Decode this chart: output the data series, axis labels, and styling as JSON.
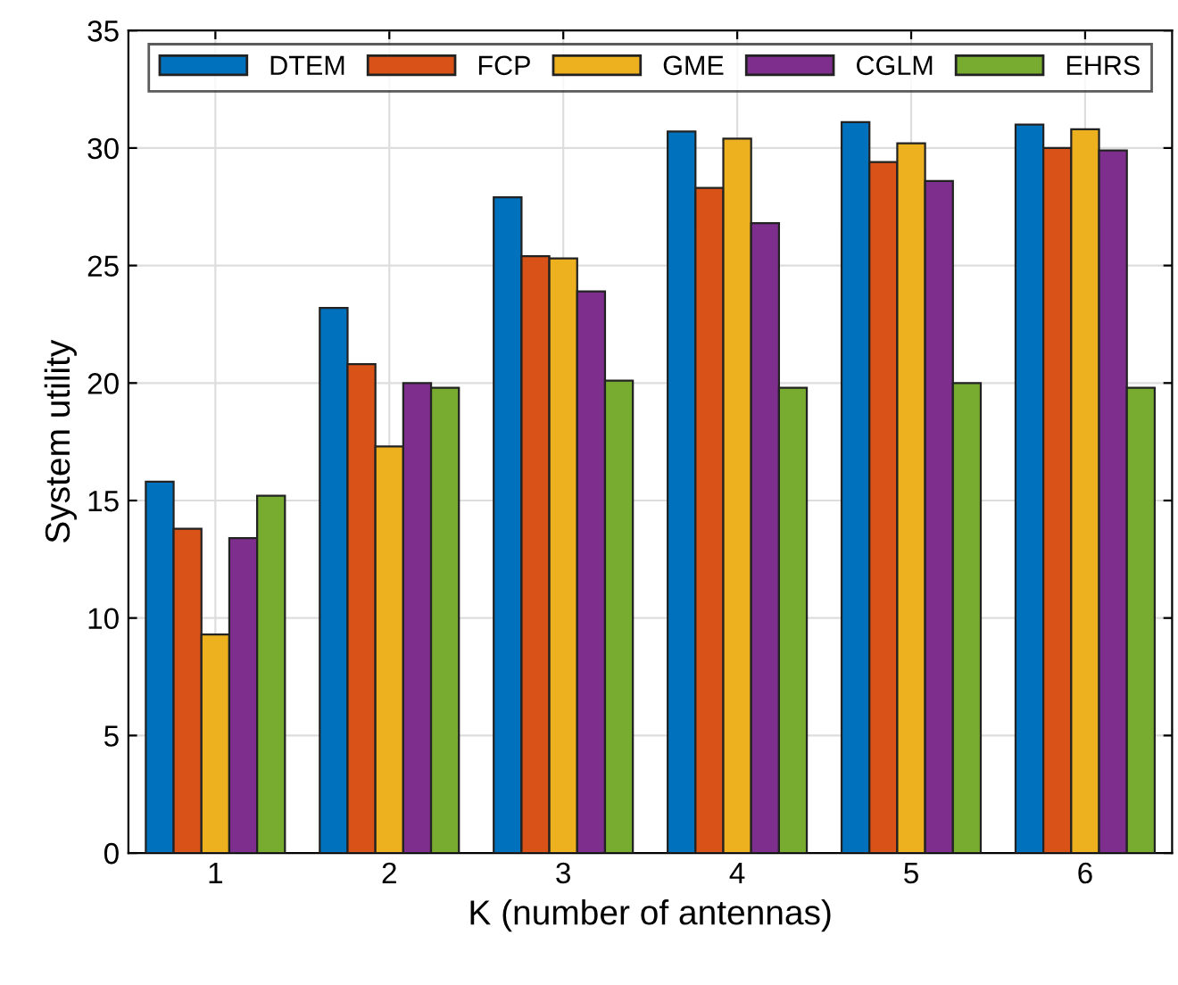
{
  "chart_data": {
    "type": "bar",
    "xlabel": "K (number of antennas)",
    "ylabel": "System utility",
    "categories": [
      "1",
      "2",
      "3",
      "4",
      "5",
      "6"
    ],
    "series": [
      {
        "name": "DTEM",
        "color": "#0072bd",
        "values": [
          15.8,
          23.2,
          27.9,
          30.7,
          31.1,
          31.0
        ]
      },
      {
        "name": "FCP",
        "color": "#d95319",
        "values": [
          13.8,
          20.8,
          25.4,
          28.3,
          29.4,
          30.0
        ]
      },
      {
        "name": "GME",
        "color": "#edb120",
        "values": [
          9.3,
          17.3,
          25.3,
          30.4,
          30.2,
          30.8
        ]
      },
      {
        "name": "CGLM",
        "color": "#7e2f8e",
        "values": [
          13.4,
          20.0,
          23.9,
          26.8,
          28.6,
          29.9
        ]
      },
      {
        "name": "EHRS",
        "color": "#77ac30",
        "values": [
          15.2,
          19.8,
          20.1,
          19.8,
          20.0,
          19.8
        ]
      }
    ],
    "ylim": [
      0,
      35
    ],
    "yticks": [
      0,
      5,
      10,
      15,
      20,
      25,
      30,
      35
    ],
    "grid": true,
    "legend": "top"
  }
}
